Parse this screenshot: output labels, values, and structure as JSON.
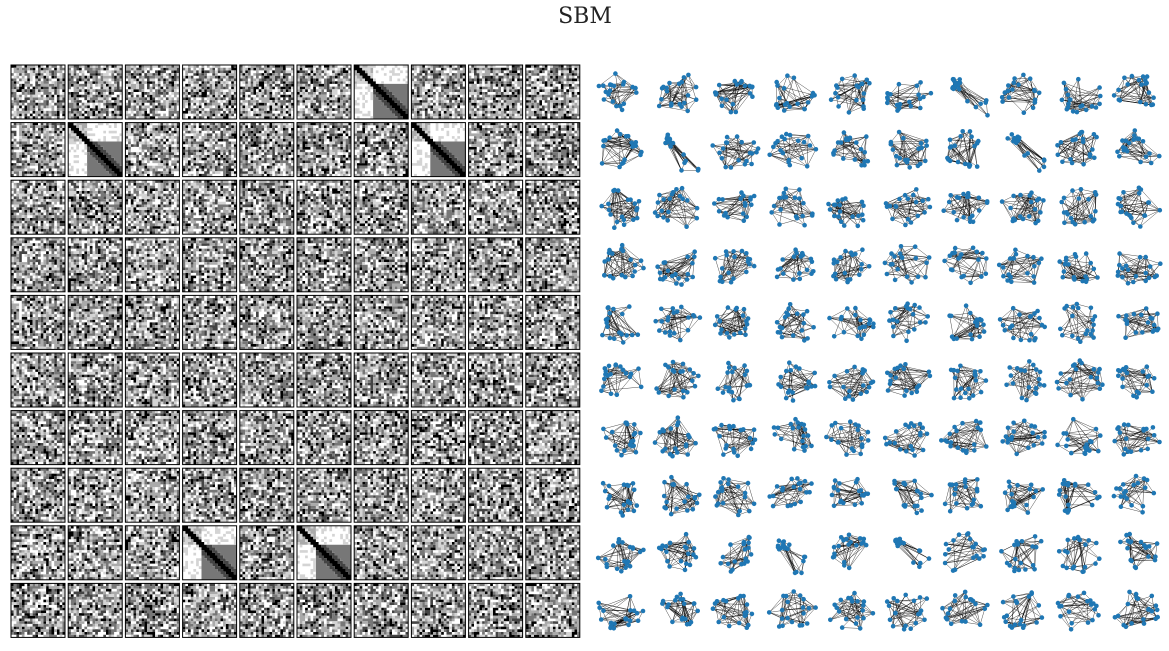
{
  "title": "SBM"
}
